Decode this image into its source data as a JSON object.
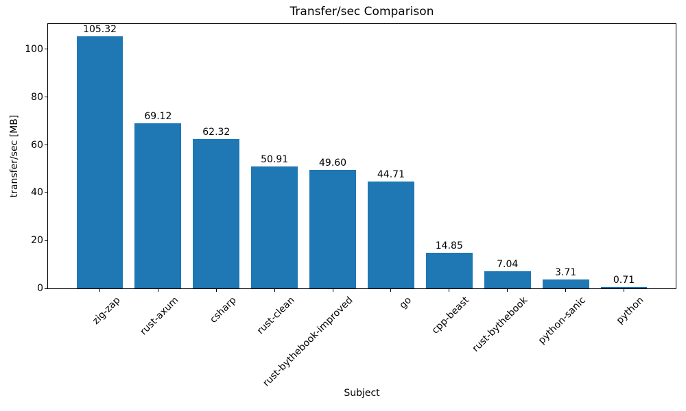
{
  "chart_data": {
    "type": "bar",
    "title": "Transfer/sec Comparison",
    "xlabel": "Subject",
    "ylabel": "transfer/sec [MB]",
    "categories": [
      "zig-zap",
      "rust-axum",
      "csharp",
      "rust-clean",
      "rust-bythebook-improved",
      "go",
      "cpp-beast",
      "rust-bythebook",
      "python-sanic",
      "python"
    ],
    "values": [
      105.32,
      69.12,
      62.32,
      50.91,
      49.6,
      44.71,
      14.85,
      7.04,
      3.71,
      0.71
    ],
    "value_labels": [
      "105.32",
      "69.12",
      "62.32",
      "50.91",
      "49.60",
      "44.71",
      "14.85",
      "7.04",
      "3.71",
      "0.71"
    ],
    "yticks": [
      0,
      20,
      40,
      60,
      80,
      100
    ],
    "ylim": [
      0,
      110.59
    ],
    "x_tick_rotation_deg": 45,
    "bar_color": "#1f77b4",
    "text_color": "#000000",
    "background_color": "#ffffff",
    "grid": false,
    "legend": "none"
  }
}
